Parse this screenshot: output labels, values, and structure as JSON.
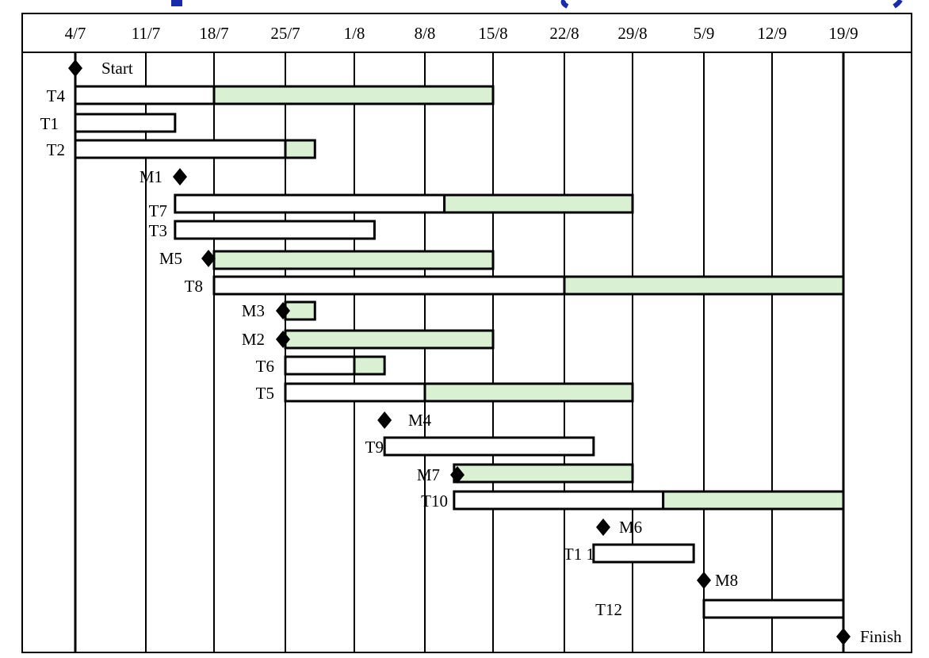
{
  "colors": {
    "slack": "#d9f0d3",
    "grid": "#000000",
    "bar_fill": "#ffffff",
    "title_blue": "#1a2aa8"
  },
  "chart_data": {
    "type": "bar",
    "title": "",
    "x_axis": {
      "ticks": [
        "4/7",
        "11/7",
        "18/7",
        "25/7",
        "1/8",
        "8/8",
        "15/8",
        "22/8",
        "29/8",
        "5/9",
        "12/9",
        "19/9"
      ],
      "tick_day_of_year": [
        185,
        192,
        199,
        206,
        213,
        220,
        227,
        234,
        241,
        248,
        255,
        262
      ]
    },
    "tasks": [
      {
        "label": "T4",
        "start": "4/7",
        "end": "18/7",
        "slack_end": "15/8"
      },
      {
        "label": "T1",
        "start": "4/7",
        "end": "14/7"
      },
      {
        "label": "T2",
        "start": "4/7",
        "end": "25/7",
        "slack_end": "28/7"
      },
      {
        "label": "T7",
        "start": "14/7",
        "end": "10/8",
        "slack_end": "29/8"
      },
      {
        "label": "T3",
        "start": "14/7",
        "end": "3/8"
      },
      {
        "label": "T5_",
        "label_text": "",
        "start": "18/7",
        "end": "18/7",
        "slack_end": "15/8"
      },
      {
        "label": "T8",
        "start": "18/7",
        "end": "22/8",
        "slack_end": "19/9"
      },
      {
        "label": "M3_",
        "label_text": "",
        "start": "25/7",
        "end": "25/7",
        "slack_end": "28/7"
      },
      {
        "label": "M2_",
        "label_text": "",
        "start": "25/7",
        "end": "25/7",
        "slack_end": "15/8"
      },
      {
        "label": "T6",
        "start": "25/7",
        "end": "1/8",
        "slack_end": "4/8"
      },
      {
        "label": "T5",
        "start": "25/7",
        "end": "8/8",
        "slack_end": "29/8"
      },
      {
        "label": "T9",
        "start": "4/8",
        "end": "25/8"
      },
      {
        "label": "M7_",
        "label_text": "",
        "start": "11/8",
        "end": "11/8",
        "slack_end": "29/8"
      },
      {
        "label": "T10",
        "start": "11/8",
        "end": "1/9",
        "slack_end": "19/9"
      },
      {
        "label": "T1 1",
        "start": "25/8",
        "end": "4/9"
      },
      {
        "label": "T12",
        "start": "5/9",
        "end": "19/9"
      }
    ],
    "milestones": [
      {
        "label": "Start",
        "date": "4/7",
        "label_side": "right"
      },
      {
        "label": "M1",
        "date": "14/7",
        "label_side": "left"
      },
      {
        "label": "M5",
        "date": "18/7",
        "label_side": "left"
      },
      {
        "label": "M3",
        "date": "25/7",
        "label_side": "left"
      },
      {
        "label": "M2",
        "date": "25/7",
        "label_side": "left"
      },
      {
        "label": "M4",
        "date": "4/8",
        "label_side": "right"
      },
      {
        "label": "M7",
        "date": "11/8",
        "label_side": "left"
      },
      {
        "label": "M6",
        "date": "25/8",
        "label_side": "right"
      },
      {
        "label": "M8",
        "date": "5/9",
        "label_side": "right"
      },
      {
        "label": "Finish",
        "date": "19/9",
        "label_side": "right"
      }
    ]
  }
}
